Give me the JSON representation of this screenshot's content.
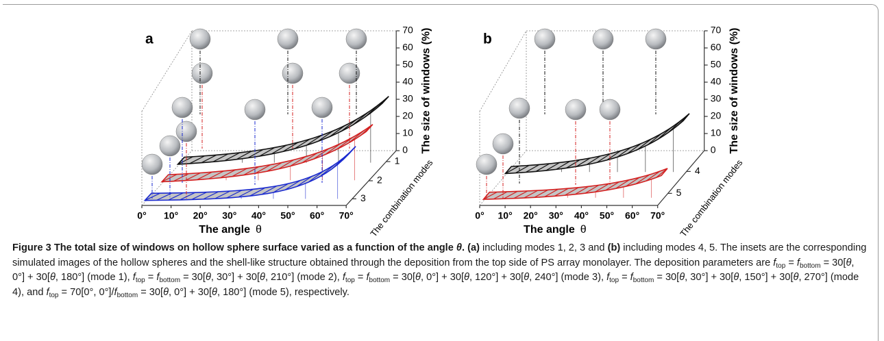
{
  "figure": {
    "panels": [
      {
        "label": "a",
        "x_axis_title": "The angle",
        "x_axis_symbol": "θ",
        "x_ticks": [
          "0°",
          "10°",
          "20°",
          "30°",
          "40°",
          "50°",
          "60°",
          "70°"
        ],
        "z_axis_title": "The size of windows (%)",
        "z_ticks": [
          0,
          10,
          20,
          30,
          40,
          50,
          60,
          70
        ],
        "mode_axis_title": "The combination modes",
        "mode_ticks": [
          1,
          2,
          3
        ]
      },
      {
        "label": "b",
        "x_axis_title": "The angle",
        "x_axis_symbol": "θ",
        "x_ticks": [
          "0°",
          "10°",
          "20°",
          "30°",
          "40°",
          "50°",
          "60°",
          "70°"
        ],
        "z_axis_title": "The size of windows (%)",
        "z_ticks": [
          0,
          10,
          20,
          30,
          40,
          50,
          60,
          70
        ],
        "mode_axis_title": "The combination modes",
        "mode_ticks": [
          4,
          5
        ]
      }
    ],
    "caption": [
      "Figure 3 The total size of windows on hollow sphere surface varied as a function of the angle ",
      "θ",
      ".",
      " (a)",
      " including modes 1, 2, 3 and ",
      "(b)",
      " including modes 4, 5. The insets are the corresponding simulated images of the hollow spheres and the shell-like structure obtained through the deposition from the top side of PS array monolayer. The deposition parameters are ",
      "f",
      "top",
      " = ",
      "f",
      "bottom",
      " = 30[",
      "θ",
      ", 0°] + 30[",
      "θ",
      ", 180°] (mode 1), ",
      "f",
      "top",
      " = ",
      "f",
      "bottom",
      " = 30[",
      "θ",
      ", 30°] + 30[",
      "θ",
      ", 210°] (mode 2), ",
      "f",
      "top",
      " = ",
      "f",
      "bottom",
      " = 30[",
      "θ",
      ", 0°] + 30[",
      "θ",
      ", 120°] + 30[",
      "θ",
      ", 240°] (mode 3), ",
      "f",
      "top",
      " = ",
      "f",
      "bottom",
      " = 30[",
      "θ",
      ", 30°] + 30[",
      "θ",
      ", 150°] + 30[",
      "θ",
      ", 270°] (mode 4), and ",
      "f",
      "top",
      " = 70[0°, 0°]/",
      "f",
      "bottom",
      " = 30[",
      "θ",
      ", 0°] + 30[",
      "θ",
      ", 180°] (mode 5), respectively."
    ]
  }
}
